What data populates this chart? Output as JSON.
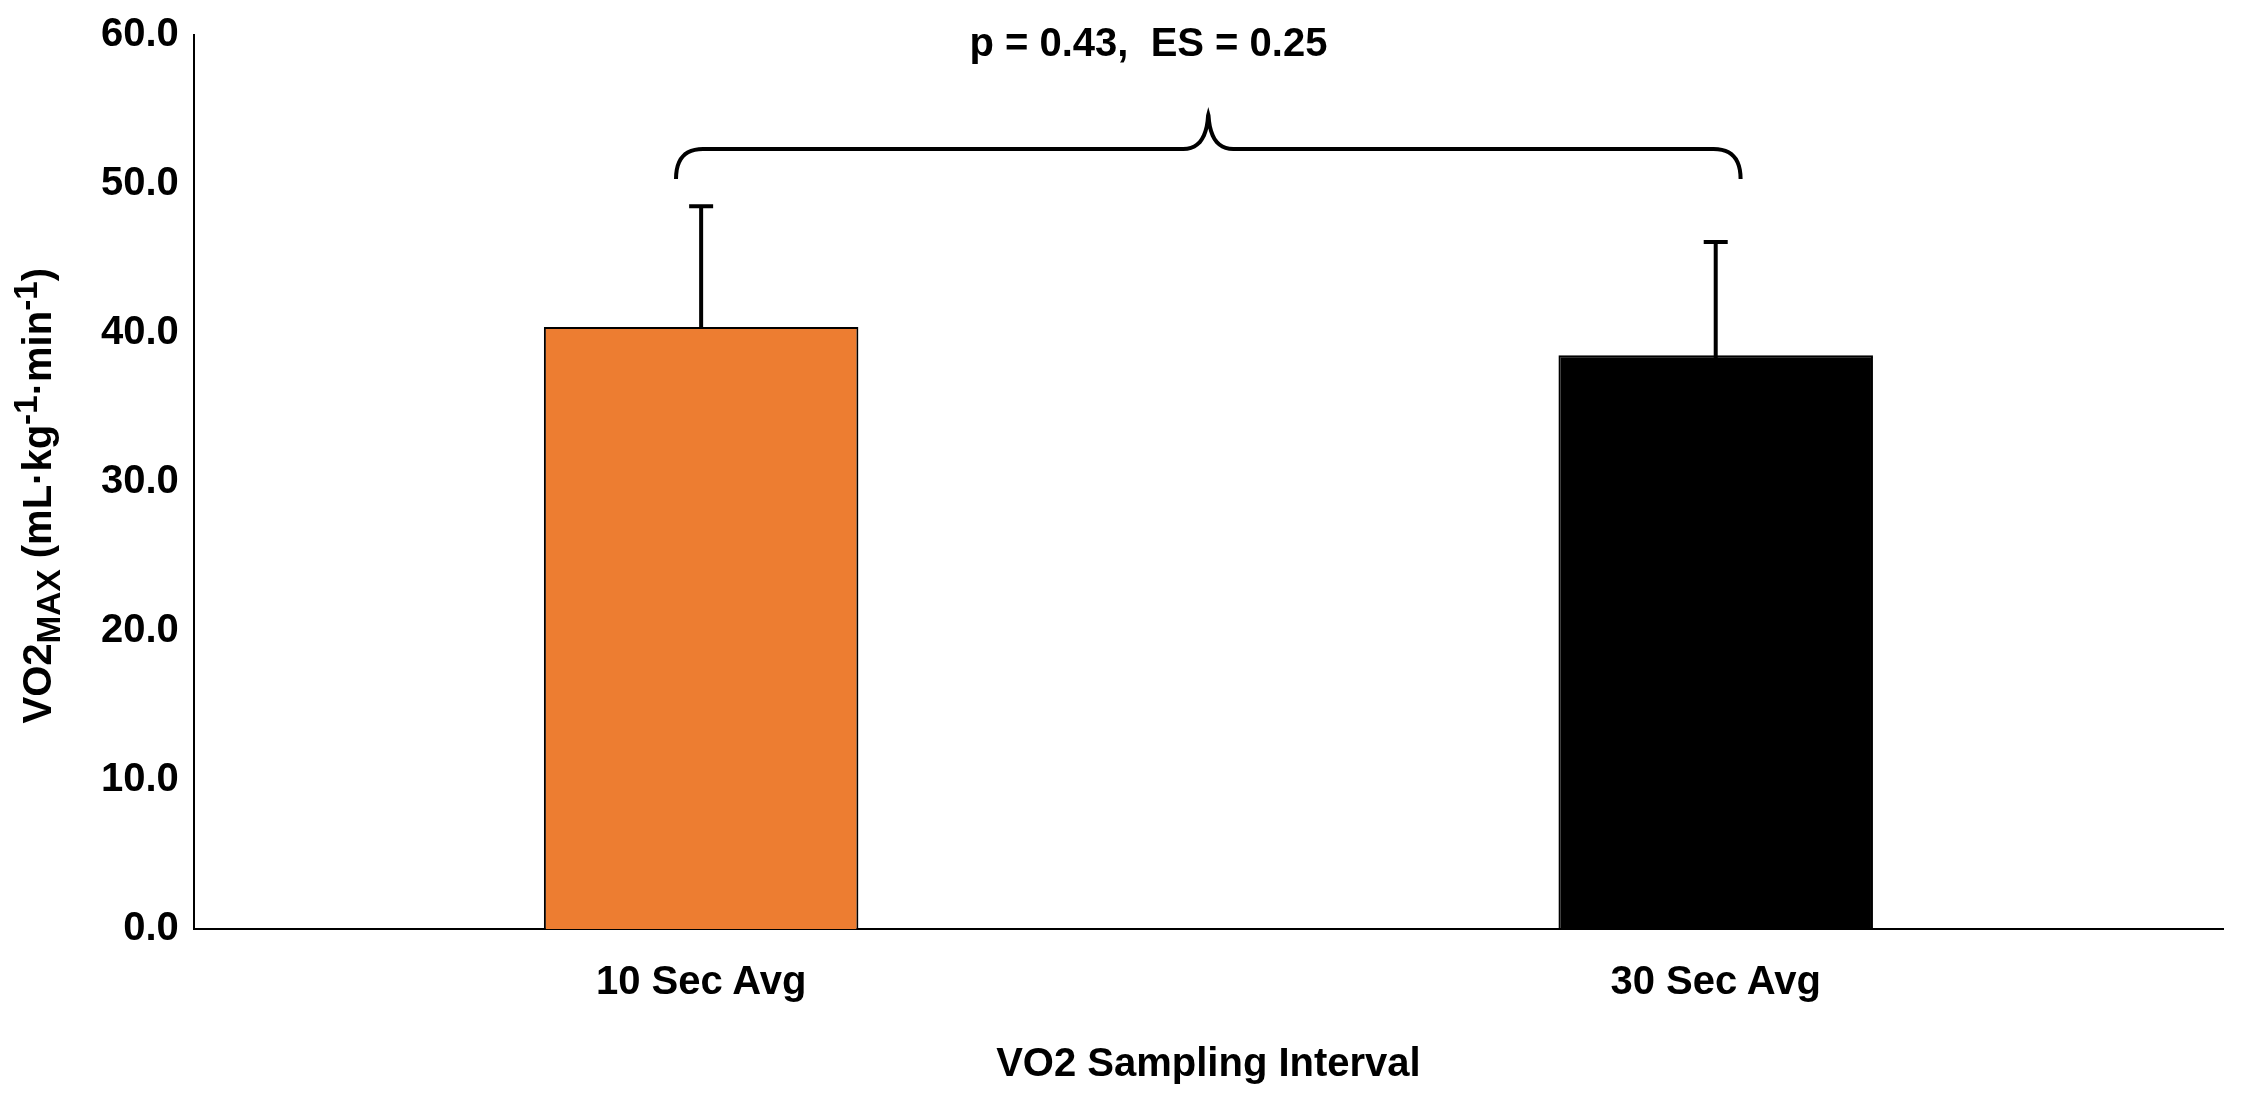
{
  "chart_data": {
    "type": "bar",
    "xlabel": "VO2 Sampling Interval",
    "ylabel": "VO2$_{MAX}$ (mL·kg$^{-1}$·min$^{-1}$)",
    "categories": [
      "10 Sec Avg",
      "30 Sec Avg"
    ],
    "values": [
      40.4,
      38.5
    ],
    "colors": [
      "#ed7d31",
      "#000000"
    ],
    "errors": [
      8.1,
      7.6
    ],
    "ylim": [
      0,
      60
    ],
    "yticks": [
      {
        "value": 0,
        "label": "0.0"
      },
      {
        "value": 10,
        "label": "10.0"
      },
      {
        "value": 20,
        "label": "20.0"
      },
      {
        "value": 30,
        "label": "30.0"
      },
      {
        "value": 40,
        "label": "40.0"
      },
      {
        "value": 50,
        "label": "50.0"
      },
      {
        "value": 60,
        "label": "60.0"
      }
    ],
    "grid": false,
    "legend": false,
    "annotations": [
      "p = 0.43,  ES = 0.25"
    ]
  }
}
